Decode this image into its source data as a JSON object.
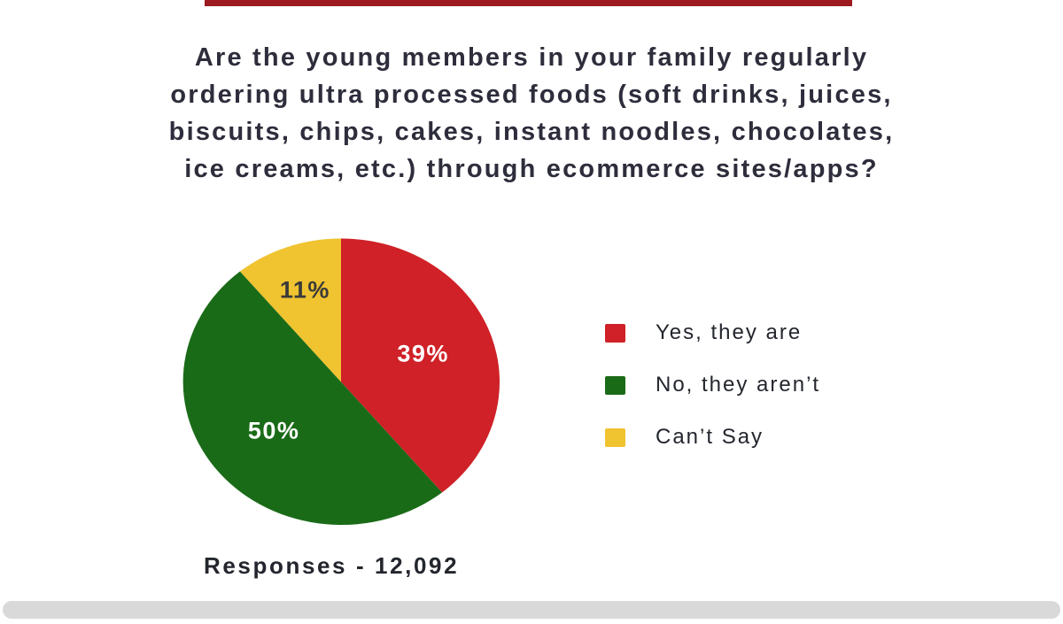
{
  "page": {
    "background": "#ffffff",
    "top_bar_color": "#9b1b20",
    "bottom_bar_color": "#d9d9d9"
  },
  "title": {
    "color": "#2d2d3c",
    "lines": [
      "Are the young members in your family regularly",
      "ordering ultra processed foods (soft drinks, juices,",
      "biscuits, chips, cakes, instant noodles, chocolates,",
      "ice creams, etc.) through ecommerce sites/apps?"
    ]
  },
  "chart_data": {
    "type": "pie",
    "title": "Are the young members in your family regularly ordering ultra processed foods (soft drinks, juices, biscuits, chips, cakes, instant noodles, chocolates, ice creams, etc.) through ecommerce sites/apps?",
    "start_angle_deg": 0,
    "direction": "clockwise",
    "legend_position": "right",
    "slices": [
      {
        "label": "Yes, they are",
        "value": 39,
        "percent_label": "39%",
        "color": "#cf2127",
        "label_color": "#ffffff"
      },
      {
        "label": "No, they aren’t",
        "value": 50,
        "percent_label": "50%",
        "color": "#1a6b18",
        "label_color": "#ffffff"
      },
      {
        "label": "Can’t Say",
        "value": 11,
        "percent_label": "11%",
        "color": "#f0c330",
        "label_color": "#3a3a3a"
      }
    ],
    "footer": "Responses - 12,092"
  }
}
